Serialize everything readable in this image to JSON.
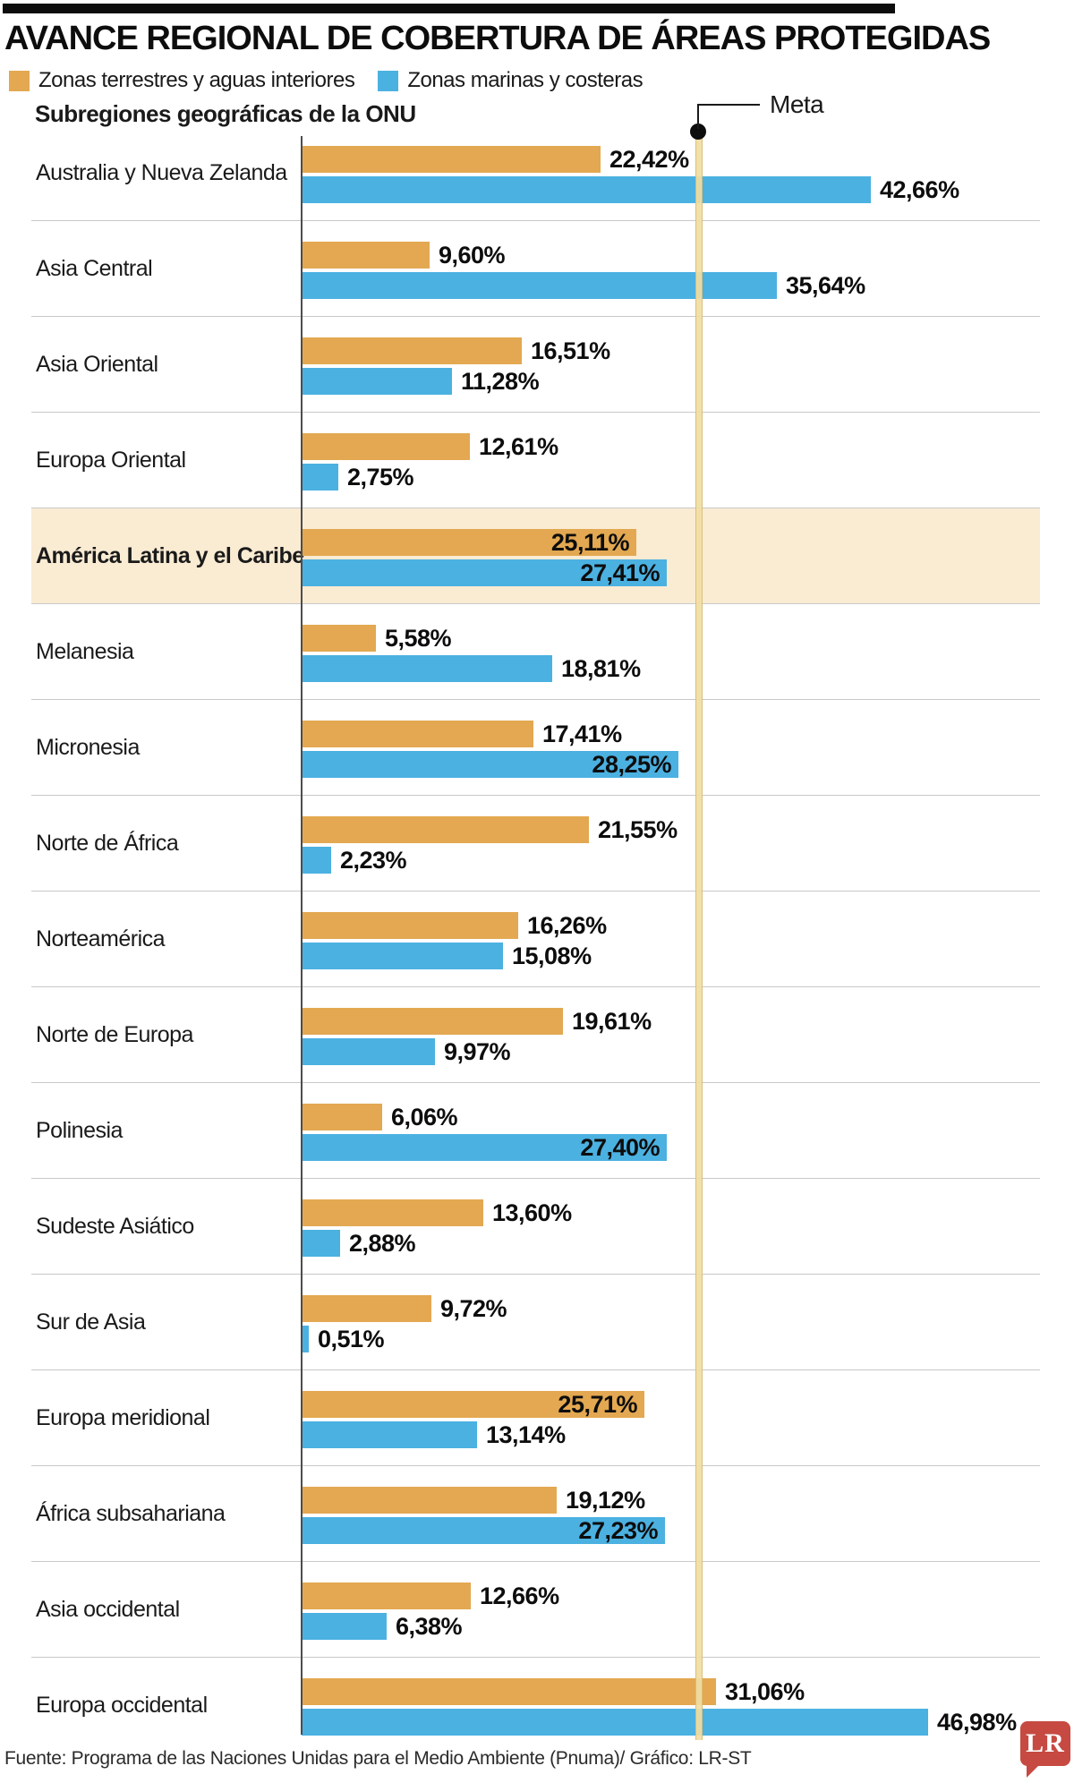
{
  "header": {
    "title": "AVANCE REGIONAL DE COBERTURA DE ÁREAS PROTEGIDAS",
    "legend": [
      {
        "label": "Zonas terrestres y aguas interiores",
        "color": "#E3A851"
      },
      {
        "label": "Zonas marinas y costeras",
        "color": "#4BB1E1"
      }
    ],
    "subtitle": "Subregiones geográficas de la ONU"
  },
  "annotations": {
    "meta_label": "Meta"
  },
  "footer": {
    "source": "Fuente: Programa de las Naciones Unidas para el Medio Ambiente (Pnuma)/ Gráfico: LR-ST",
    "logo": "LR"
  },
  "chart_data": {
    "type": "bar",
    "orientation": "horizontal",
    "title": "AVANCE REGIONAL DE COBERTURA DE ÁREAS PROTEGIDAS",
    "ylabel": "Subregiones geográficas de la ONU",
    "xlim": [
      0,
      55
    ],
    "grid": false,
    "legend_position": "top",
    "target_line": {
      "label": "Meta",
      "value": 30
    },
    "highlighted_category": "América Latina y el Caribe",
    "categories": [
      "Australia y Nueva Zelanda",
      "Asia Central",
      "Asia Oriental",
      "Europa Oriental",
      "América Latina y el Caribe",
      "Melanesia",
      "Micronesia",
      "Norte de África",
      "Norteamérica",
      "Norte de Europa",
      "Polinesia",
      "Sudeste Asiático",
      "Sur de Asia",
      "Europa meridional",
      "África subsahariana",
      "Asia occidental",
      "Europa occidental"
    ],
    "series": [
      {
        "name": "Zonas terrestres y aguas interiores",
        "color": "#E3A851",
        "values": [
          22.42,
          9.6,
          16.51,
          12.61,
          25.11,
          5.58,
          17.41,
          21.55,
          16.26,
          19.61,
          6.06,
          13.6,
          9.72,
          25.71,
          19.12,
          12.66,
          31.06
        ],
        "labels": [
          "22,42%",
          "9,60%",
          "16,51%",
          "12,61%",
          "25,11%",
          "5,58%",
          "17,41%",
          "21,55%",
          "16,26%",
          "19,61%",
          "6,06%",
          "13,60%",
          "9,72%",
          "25,71%",
          "19,12%",
          "12,66%",
          "31,06%"
        ]
      },
      {
        "name": "Zonas marinas y costeras",
        "color": "#4BB1E1",
        "values": [
          42.66,
          35.64,
          11.28,
          2.75,
          27.41,
          18.81,
          28.25,
          2.23,
          15.08,
          9.97,
          27.4,
          2.88,
          0.51,
          13.14,
          27.23,
          6.38,
          46.98
        ],
        "labels": [
          "42,66%",
          "35,64%",
          "11,28%",
          "2,75%",
          "27,41%",
          "18,81%",
          "28,25%",
          "2,23%",
          "15,08%",
          "9,97%",
          "27,40%",
          "2,88%",
          "0,51%",
          "13,14%",
          "27,23%",
          "6,38%",
          "46,98%"
        ]
      }
    ]
  }
}
